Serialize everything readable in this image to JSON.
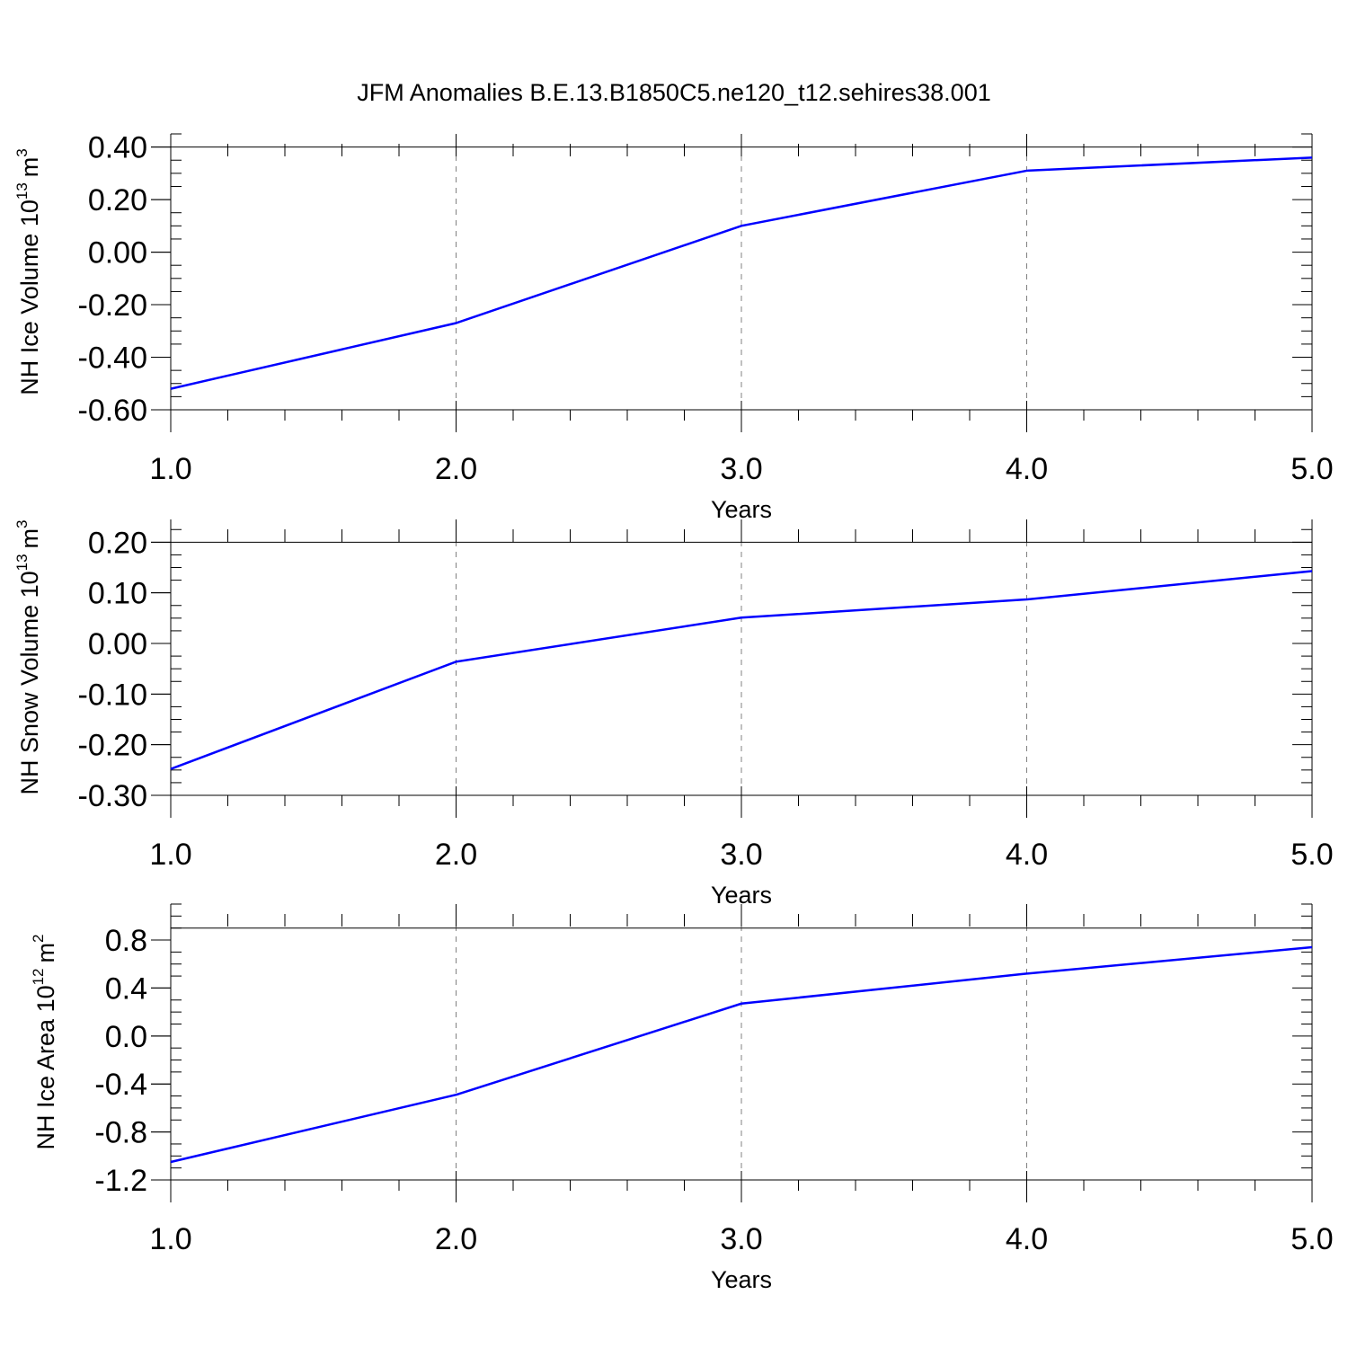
{
  "title": "JFM Anomalies B.E.13.B1850C5.ne120_t12.sehires38.001",
  "colors": {
    "series": "#0000ff",
    "axis": "#000000",
    "grid": "#808080"
  },
  "chart_data": [
    {
      "type": "line",
      "ylabel": {
        "text": "NH Ice Volume 10",
        "exponent": "13",
        "unit": "m",
        "unit_exponent": "3"
      },
      "xlabel": "Years",
      "x": [
        1,
        2,
        3,
        4,
        5
      ],
      "values": [
        -0.52,
        -0.27,
        0.1,
        0.31,
        0.36
      ],
      "xlim": [
        1,
        5
      ],
      "ylim": [
        -0.6,
        0.45
      ],
      "x_ticks": [
        "1.0",
        "2.0",
        "3.0",
        "4.0",
        "5.0"
      ],
      "y_ticks": [
        -0.6,
        -0.4,
        -0.2,
        0.0,
        0.2,
        0.4
      ],
      "y_tick_labels": [
        "-0.60",
        "-0.40",
        "-0.20",
        "0.00",
        "0.20",
        "0.40"
      ],
      "reference_line": 0.4,
      "grid": "vertical dashed"
    },
    {
      "type": "line",
      "ylabel": {
        "text": "NH Snow Volume 10",
        "exponent": "13",
        "unit": "m",
        "unit_exponent": "3"
      },
      "xlabel": "Years",
      "x": [
        1,
        2,
        3,
        4,
        5
      ],
      "values": [
        -0.248,
        -0.036,
        0.051,
        0.087,
        0.143
      ],
      "xlim": [
        1,
        5
      ],
      "ylim": [
        -0.3,
        0.245
      ],
      "x_ticks": [
        "1.0",
        "2.0",
        "3.0",
        "4.0",
        "5.0"
      ],
      "y_ticks": [
        -0.3,
        -0.2,
        -0.1,
        0.0,
        0.1,
        0.2
      ],
      "y_tick_labels": [
        "-0.30",
        "-0.20",
        "-0.10",
        "0.00",
        "0.10",
        "0.20"
      ],
      "reference_line": 0.2,
      "grid": "vertical dashed"
    },
    {
      "type": "line",
      "ylabel": {
        "text": "NH Ice Area 10",
        "exponent": "12",
        "unit": "m",
        "unit_exponent": "2"
      },
      "xlabel": "Years",
      "x": [
        1,
        2,
        3,
        4,
        5
      ],
      "values": [
        -1.05,
        -0.49,
        0.27,
        0.52,
        0.74
      ],
      "xlim": [
        1,
        5
      ],
      "ylim": [
        -1.2,
        1.1
      ],
      "x_ticks": [
        "1.0",
        "2.0",
        "3.0",
        "4.0",
        "5.0"
      ],
      "y_ticks": [
        -1.2,
        -0.8,
        -0.4,
        0.0,
        0.4,
        0.8
      ],
      "y_tick_labels": [
        "-1.2",
        "-0.8",
        "-0.4",
        "0.0",
        "0.4",
        "0.8"
      ],
      "reference_line": 0.9,
      "grid": "vertical dashed"
    }
  ]
}
